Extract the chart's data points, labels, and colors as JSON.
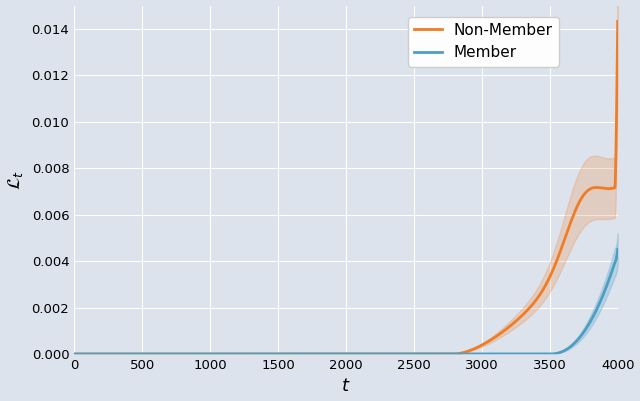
{
  "title": "",
  "xlabel": "$t$",
  "ylabel": "$\\mathcal{L}_t$",
  "xlim": [
    0,
    4000
  ],
  "ylim": [
    0,
    0.015
  ],
  "xticks": [
    0,
    500,
    1000,
    1500,
    2000,
    2500,
    3000,
    3500,
    4000
  ],
  "yticks": [
    0.0,
    0.002,
    0.004,
    0.006,
    0.008,
    0.01,
    0.012,
    0.014
  ],
  "member_color": "#4c9ec4",
  "nonmember_color": "#f07d26",
  "member_alpha": 0.25,
  "nonmember_alpha": 0.22,
  "bg_color": "#dde3ed",
  "legend_labels": [
    "Member",
    "Non-Member"
  ],
  "n_points": 4001
}
